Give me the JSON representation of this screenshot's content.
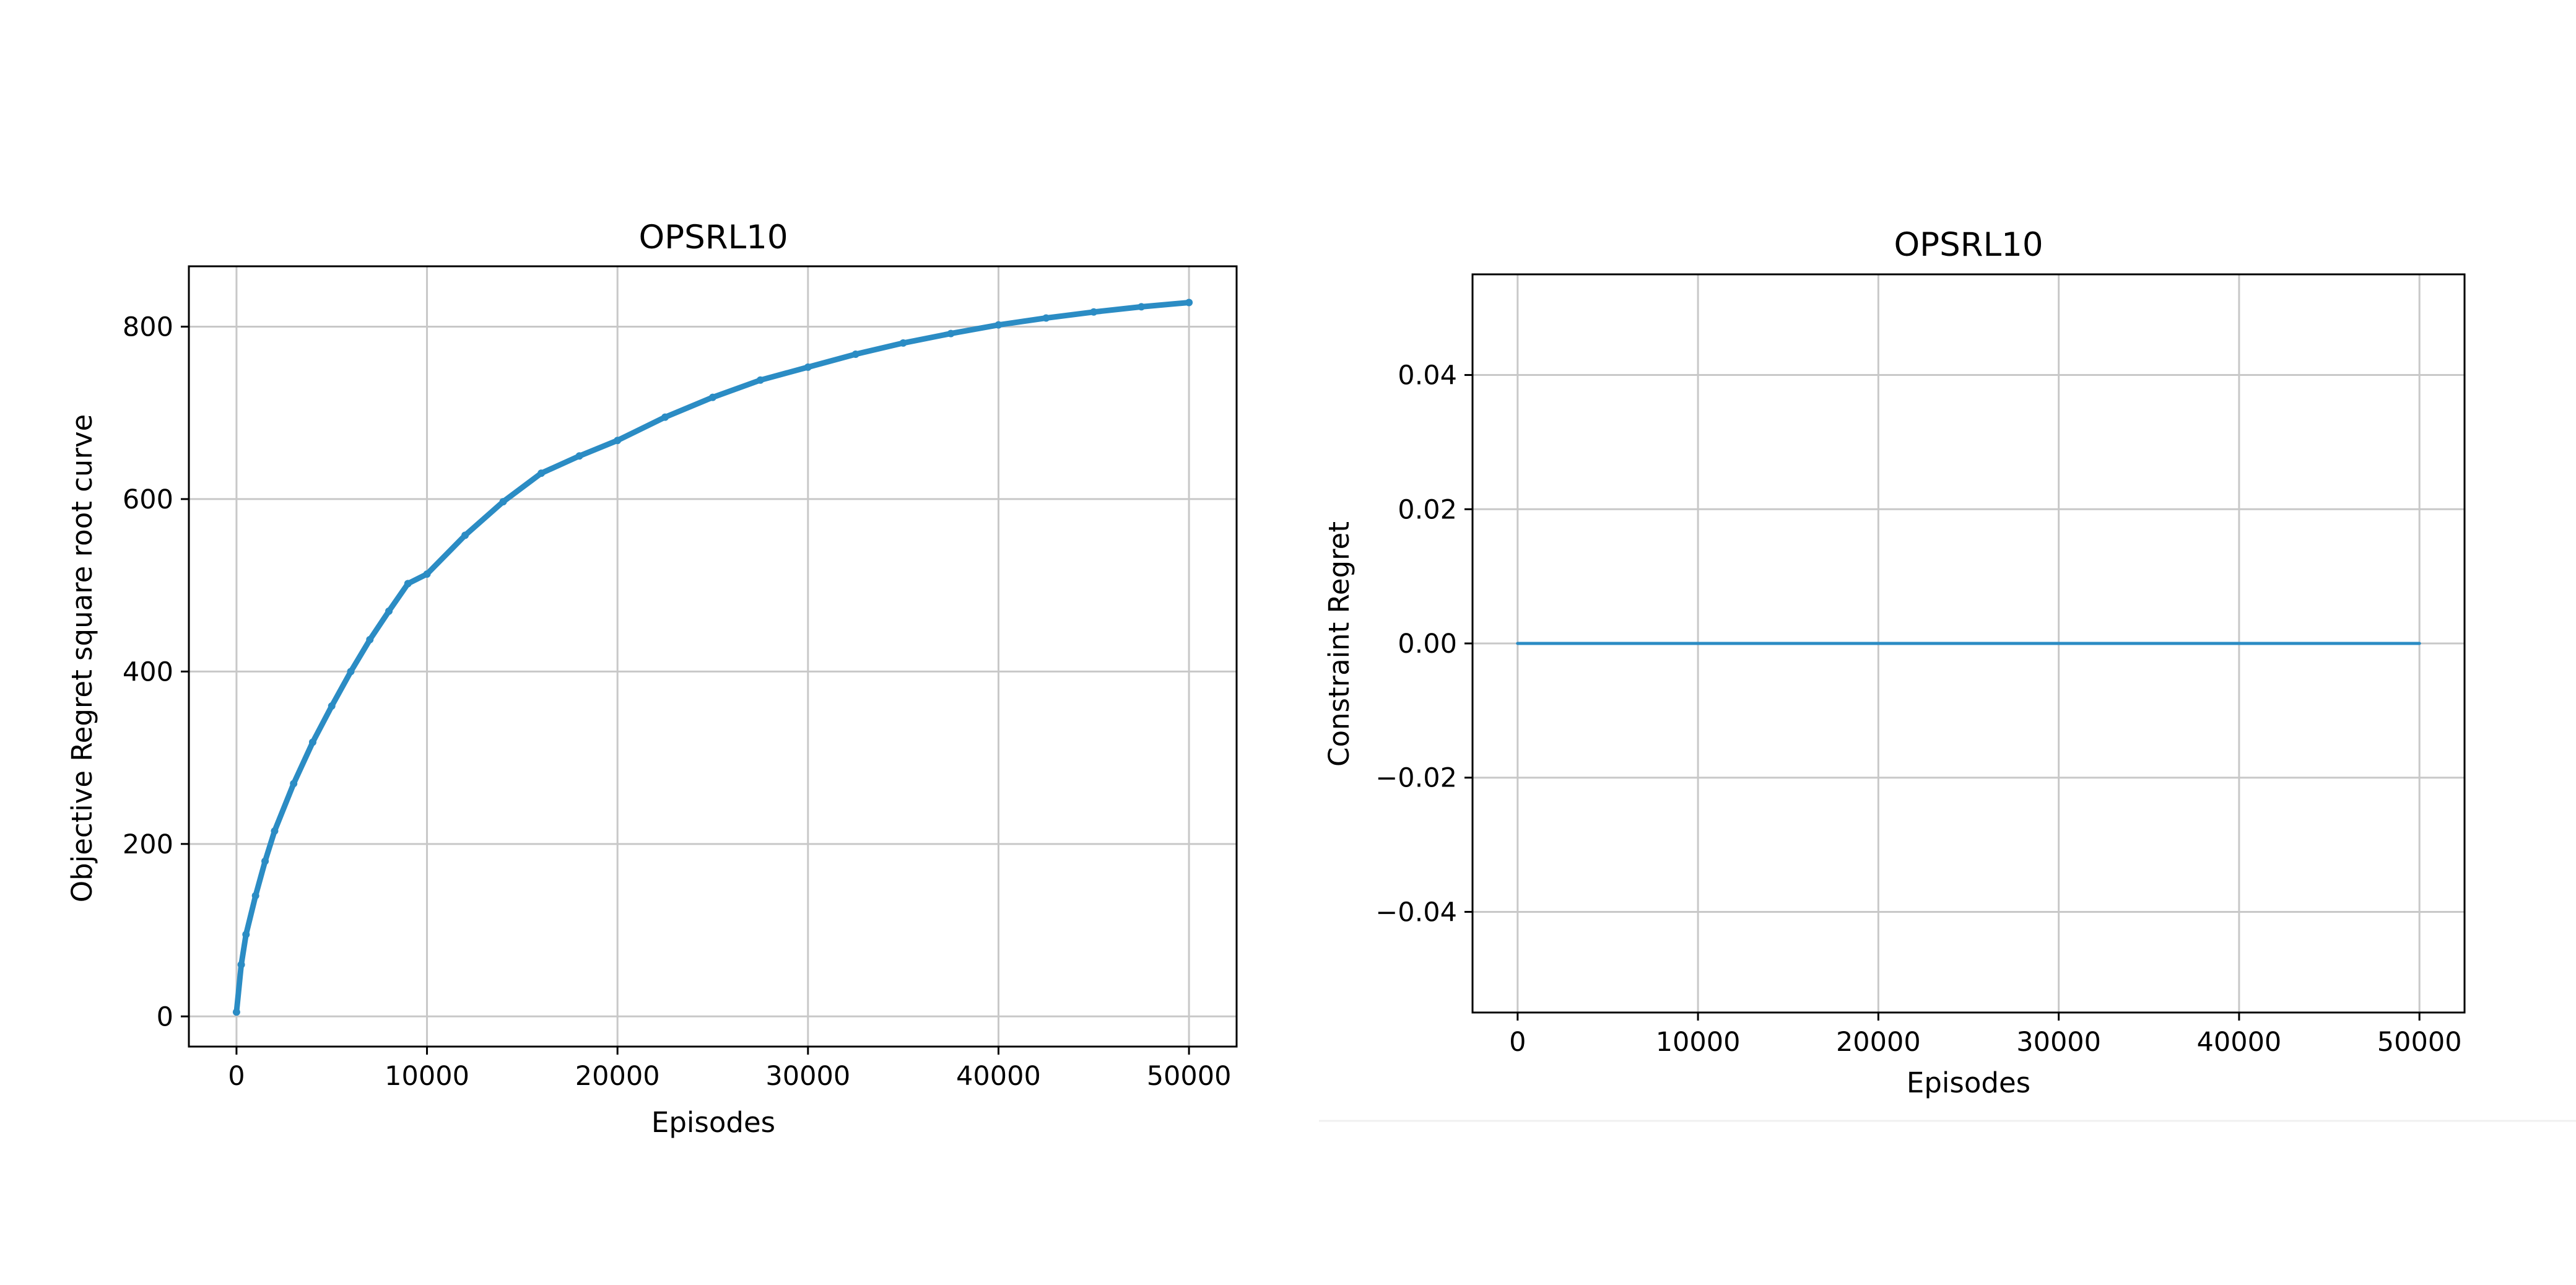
{
  "chart_data": [
    {
      "type": "line",
      "title": "OPSRL10",
      "xlabel": "Episodes",
      "ylabel": "Objective Regret square root curve",
      "xlim": [
        -2500,
        52500
      ],
      "ylim": [
        -35,
        870
      ],
      "xticks": [
        0,
        10000,
        20000,
        30000,
        40000,
        50000
      ],
      "yticks": [
        0,
        200,
        400,
        600,
        800
      ],
      "grid": true,
      "series": [
        {
          "color": "#2b8cc4",
          "marker": "dot",
          "x": [
            0,
            250,
            500,
            1000,
            1500,
            2000,
            3000,
            4000,
            5000,
            6000,
            7000,
            8000,
            9000,
            10000,
            12000,
            14000,
            16000,
            18000,
            20000,
            22500,
            25000,
            27500,
            30000,
            32500,
            35000,
            37500,
            40000,
            42500,
            45000,
            47500,
            50000
          ],
          "y": [
            5,
            60,
            95,
            140,
            180,
            215,
            270,
            318,
            360,
            400,
            437,
            470,
            502,
            513,
            558,
            597,
            630,
            650,
            668,
            695,
            718,
            738,
            753,
            768,
            781,
            792,
            802,
            810,
            817,
            823,
            828
          ]
        }
      ]
    },
    {
      "type": "line",
      "title": "OPSRL10",
      "xlabel": "Episodes",
      "ylabel": "Constraint Regret",
      "xlim": [
        -2500,
        52500
      ],
      "ylim": [
        -0.055,
        0.055
      ],
      "xticks": [
        0,
        10000,
        20000,
        30000,
        40000,
        50000
      ],
      "yticks": [
        -0.04,
        -0.02,
        0.0,
        0.02,
        0.04
      ],
      "ytick_labels": [
        "−0.04",
        "−0.02",
        "0.00",
        "0.02",
        "0.04"
      ],
      "grid": true,
      "series": [
        {
          "color": "#2b8cc4",
          "x": [
            0,
            50000
          ],
          "y": [
            0,
            0
          ]
        }
      ]
    }
  ]
}
